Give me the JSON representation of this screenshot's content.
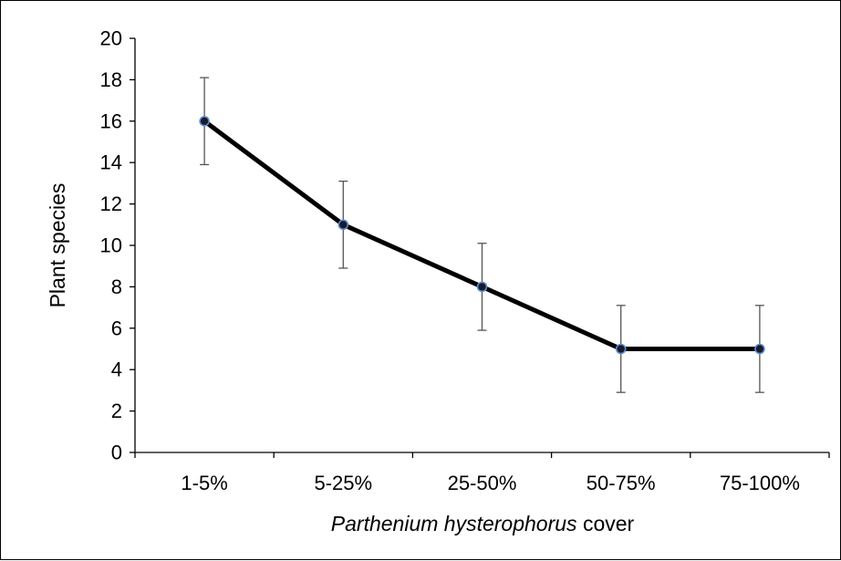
{
  "chart_data": {
    "type": "line",
    "xlabel_italic": "Parthenium hysterophorus",
    "xlabel_rest": " cover",
    "ylabel": "Plant species",
    "categories": [
      "1-5%",
      "5-25%",
      "25-50%",
      "50-75%",
      "75-100%"
    ],
    "series": [
      {
        "values": [
          16,
          11,
          8,
          5,
          5
        ],
        "error_low": [
          13.9,
          8.9,
          5.9,
          2.9,
          2.9
        ],
        "error_high": [
          18.1,
          13.1,
          10.1,
          7.1,
          7.1
        ],
        "line_color": "#000000",
        "marker_fill": "#1a1a2e",
        "marker_edge": "#5b8fd0"
      }
    ],
    "ylim": [
      0,
      20
    ],
    "yticks": [
      "0",
      "2",
      "4",
      "6",
      "8",
      "10",
      "12",
      "14",
      "16",
      "18",
      "20"
    ],
    "grid": false,
    "legend": "none"
  }
}
